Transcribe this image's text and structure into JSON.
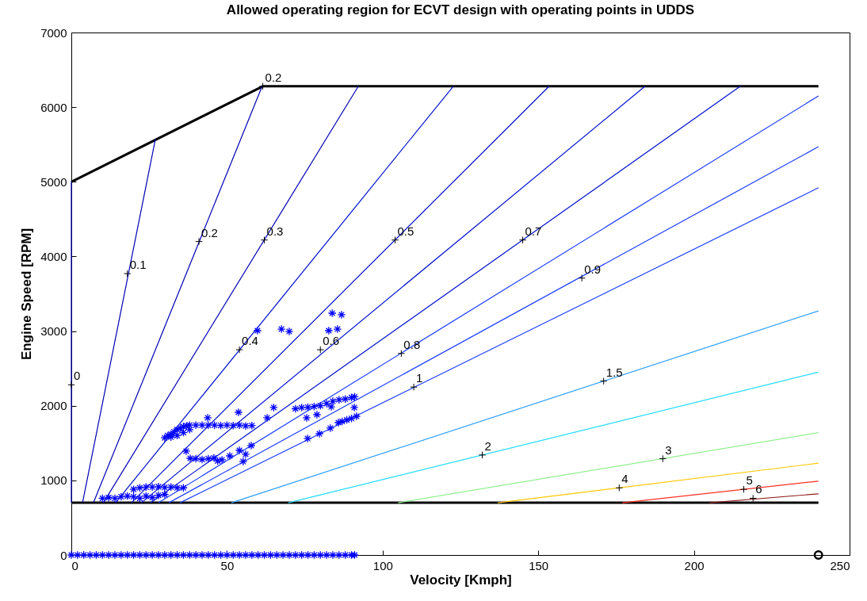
{
  "chart_data": {
    "type": "line",
    "title": "Allowed operating region for ECVT design with operating points in UDDS",
    "xlabel": "Velocity [Kmph]",
    "ylabel": "Engine Speed [RPM]",
    "xlim": [
      0,
      250
    ],
    "xticks": [
      0,
      50,
      100,
      150,
      200,
      250
    ],
    "ylim": [
      0,
      7000
    ],
    "yticks": [
      0,
      1000,
      2000,
      3000,
      4000,
      5000,
      6000,
      7000
    ],
    "grid": false,
    "series": [
      {
        "type": "line",
        "color": "#000000",
        "x": [
          0,
          61.5,
          240
        ],
        "values": [
          5000,
          6280,
          6280
        ]
      },
      {
        "type": "line",
        "color": "#000000",
        "x": [
          0,
          240
        ],
        "values": [
          700,
          700
        ]
      },
      {
        "type": "line",
        "color": "#0000b4",
        "x": [
          0,
          0
        ],
        "values": [
          700,
          5000
        ]
      },
      {
        "type": "line",
        "color": "#0000b4",
        "x": [
          3.6,
          27
        ],
        "values": [
          700,
          5570
        ]
      },
      {
        "type": "line",
        "color": "#0000b4",
        "x": [
          7.1,
          61.3
        ],
        "values": [
          700,
          6280
        ]
      },
      {
        "type": "line",
        "color": "#0000b4",
        "x": [
          10.3,
          92.2
        ],
        "values": [
          700,
          6280
        ]
      },
      {
        "type": "line",
        "color": "#0010cc",
        "x": [
          14.2,
          122.7
        ],
        "values": [
          700,
          6280
        ]
      },
      {
        "type": "line",
        "color": "#0010cc",
        "x": [
          19.3,
          153.5
        ],
        "values": [
          700,
          6280
        ]
      },
      {
        "type": "line",
        "color": "#0010cc",
        "x": [
          22.5,
          184.3
        ],
        "values": [
          700,
          6280
        ]
      },
      {
        "type": "line",
        "color": "#0010cc",
        "x": [
          25.5,
          214.9
        ],
        "values": [
          700,
          6280
        ]
      },
      {
        "type": "line",
        "color": "#1a3cff",
        "x": [
          28,
          240
        ],
        "values": [
          700,
          6150
        ]
      },
      {
        "type": "line",
        "color": "#1a3cff",
        "x": [
          31.3,
          240
        ],
        "values": [
          700,
          5470
        ]
      },
      {
        "type": "line",
        "color": "#1a3cff",
        "x": [
          34.9,
          240
        ],
        "values": [
          700,
          4920
        ]
      },
      {
        "type": "line",
        "color": "#2ea0ff",
        "x": [
          51.4,
          240
        ],
        "values": [
          700,
          3270
        ]
      },
      {
        "type": "line",
        "color": "#20dcff",
        "x": [
          69.7,
          240
        ],
        "values": [
          700,
          2450
        ]
      },
      {
        "type": "line",
        "color": "#90f090",
        "x": [
          105,
          240
        ],
        "values": [
          700,
          1640
        ]
      },
      {
        "type": "line",
        "color": "#ffc800",
        "x": [
          137,
          240
        ],
        "values": [
          700,
          1230
        ]
      },
      {
        "type": "line",
        "color": "#ff3020",
        "x": [
          177,
          240
        ],
        "values": [
          700,
          990
        ]
      },
      {
        "type": "line",
        "color": "#902020",
        "x": [
          205,
          240
        ],
        "values": [
          700,
          820
        ]
      },
      {
        "type": "scatter",
        "color": "#0000ff",
        "marker": "cross",
        "x": [
          30,
          31,
          32,
          33,
          34,
          35,
          36,
          37,
          38,
          40,
          42,
          44,
          46,
          48,
          50,
          52,
          54,
          56,
          58,
          32,
          34,
          36,
          38,
          43.8,
          53.7,
          62.9,
          65,
          59.8,
          67.5,
          70,
          83.8,
          86.8,
          82.7,
          85.5,
          36.9,
          38.2,
          40,
          42,
          44,
          45.8,
          48.4,
          50.9,
          54,
          55.2,
          57.8,
          47,
          56,
          20,
          22,
          24,
          26,
          28,
          30,
          32,
          34,
          36,
          10,
          12,
          14,
          16,
          18,
          20,
          22,
          24,
          26,
          28,
          30,
          72,
          74,
          76,
          78,
          80,
          82,
          84,
          86,
          88,
          90,
          91,
          75.6,
          78.9,
          83.5,
          90.9,
          75.9,
          79.7,
          83.2,
          85.8,
          87,
          88.5,
          90,
          91.6
        ],
        "values": [
          1570,
          1600,
          1620,
          1650,
          1680,
          1700,
          1720,
          1730,
          1740,
          1740,
          1740,
          1740,
          1740,
          1735,
          1740,
          1735,
          1740,
          1730,
          1735,
          1580,
          1600,
          1640,
          1680,
          1838,
          1912,
          1838,
          1976,
          3006,
          3027,
          2995,
          3240,
          3219,
          3006,
          3027,
          1392,
          1296,
          1290,
          1280,
          1290,
          1300,
          1275,
          1328,
          1402,
          1253,
          1466,
          1260,
          1350,
          880,
          900,
          910,
          910,
          915,
          905,
          910,
          900,
          900,
          760,
          770,
          760,
          780,
          790,
          780,
          760,
          790,
          770,
          800,
          810,
          1960,
          1975,
          1980,
          1990,
          2000,
          2030,
          2060,
          2080,
          2090,
          2110,
          2120,
          1838,
          1880,
          1986,
          1976,
          1561,
          1625,
          1700,
          1774,
          1790,
          1810,
          1830,
          1859
        ]
      },
      {
        "type": "scatter",
        "color": "#0000ff",
        "marker": "cross",
        "x": [
          0,
          2,
          4,
          6,
          8,
          10,
          12,
          14,
          16,
          18,
          20,
          22,
          24,
          26,
          28,
          30,
          32,
          34,
          36,
          38,
          40,
          42,
          44,
          46,
          48,
          50,
          52,
          54,
          56,
          58,
          60,
          62,
          64,
          66,
          68,
          70,
          72,
          74,
          76,
          78,
          80,
          82,
          84,
          86,
          88,
          90,
          91
        ],
        "values": [
          0,
          0,
          0,
          0,
          0,
          0,
          0,
          0,
          0,
          0,
          0,
          0,
          0,
          0,
          0,
          0,
          0,
          0,
          0,
          0,
          0,
          0,
          0,
          0,
          0,
          0,
          0,
          0,
          0,
          0,
          0,
          0,
          0,
          0,
          0,
          0,
          0,
          0,
          0,
          0,
          0,
          0,
          0,
          0,
          0,
          0,
          0
        ]
      },
      {
        "type": "scatter",
        "color": "#000000",
        "marker": "circle",
        "x": [
          240
        ],
        "values": [
          0
        ]
      }
    ],
    "annotations": [
      {
        "text": "0",
        "x": 0,
        "y": 2280
      },
      {
        "text": "0.1",
        "x": 18,
        "y": 3770
      },
      {
        "text": "0.2",
        "x": 41,
        "y": 4200
      },
      {
        "text": "0.2",
        "x": 61.5,
        "y": 6280
      },
      {
        "text": "0.3",
        "x": 62,
        "y": 4220
      },
      {
        "text": "0.4",
        "x": 54,
        "y": 2750
      },
      {
        "text": "0.5",
        "x": 104,
        "y": 4220
      },
      {
        "text": "0.6",
        "x": 80,
        "y": 2750
      },
      {
        "text": "0.7",
        "x": 145,
        "y": 4220
      },
      {
        "text": "0.8",
        "x": 106,
        "y": 2700
      },
      {
        "text": "0.9",
        "x": 164,
        "y": 3710
      },
      {
        "text": "1",
        "x": 110,
        "y": 2250
      },
      {
        "text": "1.5",
        "x": 171,
        "y": 2330
      },
      {
        "text": "2",
        "x": 132,
        "y": 1340
      },
      {
        "text": "3",
        "x": 190,
        "y": 1290
      },
      {
        "text": "4",
        "x": 176,
        "y": 900
      },
      {
        "text": "5",
        "x": 216,
        "y": 880
      },
      {
        "text": "6",
        "x": 219,
        "y": 760
      }
    ]
  }
}
